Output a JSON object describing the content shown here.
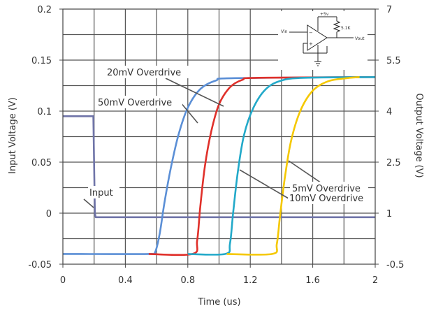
{
  "chart_data": {
    "type": "line",
    "xlabel": "Time (us)",
    "ylabel": "Input Voltage (V)",
    "y2label": "Output Voltage (V)",
    "xlim": [
      0,
      2
    ],
    "ylim": [
      -0.05,
      0.2
    ],
    "y2lim": [
      -0.5,
      7
    ],
    "grid": true,
    "x_ticks": [
      0,
      0.4,
      0.8,
      1.2,
      1.6,
      2
    ],
    "x_tick_labels": [
      "0",
      "0.4",
      "0.8",
      "1.2",
      "1.6",
      "2"
    ],
    "y_ticks": [
      -0.05,
      0,
      0.05,
      0.1,
      0.15,
      0.2
    ],
    "y_tick_labels": [
      "-0.05",
      "0",
      "0.05",
      "0.1",
      "0.15",
      "0.2"
    ],
    "y2_ticks": [
      -0.5,
      1,
      2.5,
      4,
      5.5,
      7
    ],
    "y2_tick_labels": [
      "-0.5",
      "1",
      "2.5",
      "4",
      "5.5",
      "7"
    ],
    "series": [
      {
        "name": "Input",
        "axis": "left",
        "color": "#6f74a8",
        "points": [
          [
            0,
            0.095
          ],
          [
            0.195,
            0.095
          ],
          [
            0.205,
            0.0
          ],
          [
            0.21,
            -0.004
          ],
          [
            2,
            -0.004
          ]
        ]
      },
      {
        "name": "50mV Overdrive",
        "axis": "right",
        "color": "#5b8fd6",
        "points": [
          [
            0,
            -0.2
          ],
          [
            0.55,
            -0.2
          ],
          [
            0.59,
            -0.15
          ],
          [
            0.62,
            0.4
          ],
          [
            0.65,
            1.3
          ],
          [
            0.69,
            2.3
          ],
          [
            0.74,
            3.3
          ],
          [
            0.8,
            4.1
          ],
          [
            0.88,
            4.65
          ],
          [
            0.98,
            4.9
          ],
          [
            1.1,
            4.97
          ],
          [
            2,
            5.0
          ]
        ]
      },
      {
        "name": "20mV Overdrive",
        "axis": "right",
        "color": "#e0302a",
        "points": [
          [
            0.55,
            -0.2
          ],
          [
            0.83,
            -0.2
          ],
          [
            0.86,
            0.2
          ],
          [
            0.88,
            1.2
          ],
          [
            0.91,
            2.4
          ],
          [
            0.95,
            3.4
          ],
          [
            1.0,
            4.2
          ],
          [
            1.07,
            4.7
          ],
          [
            1.15,
            4.92
          ],
          [
            1.25,
            4.98
          ],
          [
            2,
            5.0
          ]
        ]
      },
      {
        "name": "10mV Overdrive",
        "axis": "right",
        "color": "#22a9c9",
        "points": [
          [
            0.8,
            -0.2
          ],
          [
            1.04,
            -0.2
          ],
          [
            1.07,
            0.1
          ],
          [
            1.09,
            1.0
          ],
          [
            1.12,
            2.2
          ],
          [
            1.16,
            3.3
          ],
          [
            1.22,
            4.1
          ],
          [
            1.3,
            4.65
          ],
          [
            1.4,
            4.9
          ],
          [
            1.55,
            4.98
          ],
          [
            2,
            5.0
          ]
        ]
      },
      {
        "name": "5mV Overdrive",
        "axis": "right",
        "color": "#f5c800",
        "points": [
          [
            1.05,
            -0.2
          ],
          [
            1.34,
            -0.2
          ],
          [
            1.37,
            0.1
          ],
          [
            1.39,
            0.9
          ],
          [
            1.42,
            2.0
          ],
          [
            1.46,
            3.1
          ],
          [
            1.52,
            4.0
          ],
          [
            1.6,
            4.6
          ],
          [
            1.7,
            4.88
          ],
          [
            1.82,
            4.97
          ],
          [
            1.9,
            5.0
          ]
        ]
      }
    ],
    "annotations": [
      {
        "text": "20mV Overdrive"
      },
      {
        "text": "50mV Overdrive"
      },
      {
        "text": "Input"
      },
      {
        "text": "5mV Overdrive"
      },
      {
        "text": "10mV Overdrive"
      }
    ],
    "schematic": {
      "supply": "+5v",
      "resistor": "5.1K",
      "input": "Vin",
      "output": "Vout"
    }
  }
}
